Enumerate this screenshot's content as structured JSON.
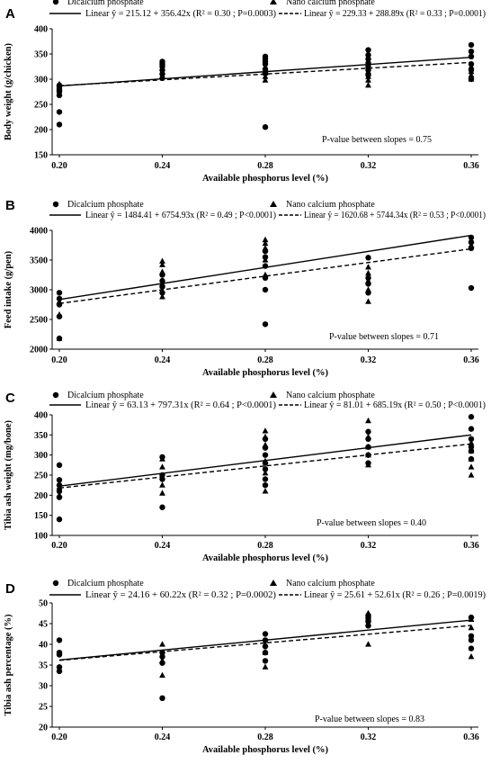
{
  "chart_data": [
    {
      "type": "scatter",
      "panel": "A",
      "xlabel": "Available phosphorus level (%)",
      "ylabel": "Body weight (g/chicken)",
      "xticks": [
        "0.20",
        "0.24",
        "0.28",
        "0.32",
        "0.36"
      ],
      "yticks": [
        "150",
        "200",
        "250",
        "300",
        "350",
        "400"
      ],
      "yticks_display": [
        "150",
        "200",
        "250",
        "300",
        "350",
        "400"
      ],
      "xlim": [
        0.2,
        0.36
      ],
      "ylim": [
        150,
        400
      ],
      "pvalue_text": "P-value between slopes = 0.75",
      "legend_pos": "top",
      "series": [
        {
          "name": "Dicalcium phosphate",
          "marker": "circle",
          "fit_label": "Linear ŷ = 215.12 + 356.42x (R² = 0.30 ; P=0.0003)",
          "fit_style": "solid",
          "intercept": 215.12,
          "slope": 356.42,
          "points": [
            [
              0.2,
              210
            ],
            [
              0.2,
              235
            ],
            [
              0.2,
              268
            ],
            [
              0.2,
              275
            ],
            [
              0.2,
              280
            ],
            [
              0.2,
              285
            ],
            [
              0.2,
              288
            ],
            [
              0.24,
              302
            ],
            [
              0.24,
              310
            ],
            [
              0.24,
              318
            ],
            [
              0.24,
              325
            ],
            [
              0.24,
              330
            ],
            [
              0.24,
              335
            ],
            [
              0.28,
              205
            ],
            [
              0.28,
              312
            ],
            [
              0.28,
              320
            ],
            [
              0.28,
              330
            ],
            [
              0.28,
              335
            ],
            [
              0.28,
              340
            ],
            [
              0.28,
              345
            ],
            [
              0.32,
              308
            ],
            [
              0.32,
              318
            ],
            [
              0.32,
              325
            ],
            [
              0.32,
              332
            ],
            [
              0.32,
              340
            ],
            [
              0.32,
              348
            ],
            [
              0.32,
              358
            ],
            [
              0.36,
              300
            ],
            [
              0.36,
              318
            ],
            [
              0.36,
              330
            ],
            [
              0.36,
              345
            ],
            [
              0.36,
              355
            ],
            [
              0.36,
              368
            ]
          ]
        },
        {
          "name": "Nano calcium phosphate",
          "marker": "triangle",
          "fit_label": "Linear ŷ = 229.33 + 288.89x (R² = 0.33 ; P=0.0001)",
          "fit_style": "dashed",
          "intercept": 229.33,
          "slope": 288.89,
          "points": [
            [
              0.2,
              272
            ],
            [
              0.2,
              282
            ],
            [
              0.2,
              290
            ],
            [
              0.24,
              305
            ],
            [
              0.24,
              315
            ],
            [
              0.24,
              322
            ],
            [
              0.28,
              298
            ],
            [
              0.28,
              305
            ],
            [
              0.28,
              312
            ],
            [
              0.28,
              322
            ],
            [
              0.32,
              288
            ],
            [
              0.32,
              298
            ],
            [
              0.32,
              305
            ],
            [
              0.32,
              315
            ],
            [
              0.32,
              322
            ],
            [
              0.36,
              300
            ],
            [
              0.36,
              308
            ],
            [
              0.36,
              315
            ],
            [
              0.36,
              325
            ]
          ]
        }
      ]
    },
    {
      "type": "scatter",
      "panel": "B",
      "xlabel": "Available phosphorus level (%)",
      "ylabel": "Feed intake (g/pen)",
      "xticks": [
        "0.20",
        "0.24",
        "0.28",
        "0.32",
        "0.36"
      ],
      "yticks": [
        "2000",
        "2500",
        "3000",
        "3500",
        "4000"
      ],
      "yticks_display": [
        "2000",
        "2500",
        "3000",
        "3500",
        "4000"
      ],
      "xlim": [
        0.2,
        0.36
      ],
      "ylim": [
        2000,
        4000
      ],
      "pvalue_text": "P-value between slopes = 0.71",
      "legend_pos": "top",
      "series": [
        {
          "name": "Dicalcium phosphate",
          "marker": "circle",
          "fit_label": "Linear ŷ = 1484.41 + 6754.93x  (R² = 0.49 ; P<0.0001)",
          "fit_style": "solid",
          "intercept": 1484.41,
          "slope": 6754.93,
          "points": [
            [
              0.2,
              2180
            ],
            [
              0.2,
              2550
            ],
            [
              0.2,
              2750
            ],
            [
              0.2,
              2850
            ],
            [
              0.2,
              2950
            ],
            [
              0.24,
              2950
            ],
            [
              0.24,
              3050
            ],
            [
              0.24,
              3150
            ],
            [
              0.24,
              3250
            ],
            [
              0.28,
              2420
            ],
            [
              0.28,
              3000
            ],
            [
              0.28,
              3200
            ],
            [
              0.28,
              3400
            ],
            [
              0.28,
              3550
            ],
            [
              0.28,
              3650
            ],
            [
              0.32,
              2950
            ],
            [
              0.32,
              3100
            ],
            [
              0.32,
              3200
            ],
            [
              0.32,
              3540
            ],
            [
              0.36,
              3030
            ],
            [
              0.36,
              3700
            ],
            [
              0.36,
              3800
            ],
            [
              0.36,
              3880
            ]
          ]
        },
        {
          "name": "Nano calcium phosphate",
          "marker": "triangle",
          "fit_label": "Linear ŷ = 1620.68 + 5744.34x  (R² = 0.53 ; P<0.0001)",
          "fit_style": "dashed",
          "intercept": 1620.68,
          "slope": 5744.34,
          "points": [
            [
              0.2,
              2180
            ],
            [
              0.2,
              2580
            ],
            [
              0.2,
              2800
            ],
            [
              0.24,
              2880
            ],
            [
              0.24,
              3100
            ],
            [
              0.24,
              3300
            ],
            [
              0.24,
              3420
            ],
            [
              0.24,
              3480
            ],
            [
              0.28,
              3250
            ],
            [
              0.28,
              3500
            ],
            [
              0.28,
              3700
            ],
            [
              0.28,
              3780
            ],
            [
              0.28,
              3840
            ],
            [
              0.32,
              2800
            ],
            [
              0.32,
              3000
            ],
            [
              0.32,
              3150
            ],
            [
              0.32,
              3280
            ],
            [
              0.32,
              3380
            ],
            [
              0.36,
              3750
            ],
            [
              0.36,
              3820
            ]
          ]
        }
      ]
    },
    {
      "type": "scatter",
      "panel": "C",
      "xlabel": "Available phosphorus level (%)",
      "ylabel": "Tibia ash weight (mg/bone)",
      "xticks": [
        "0.20",
        "0.24",
        "0.28",
        "0.32",
        "0.36"
      ],
      "yticks": [
        "100",
        "150",
        "200",
        "250",
        "300",
        "350",
        "400"
      ],
      "yticks_display": [
        "100",
        "150",
        "200",
        "250",
        "300",
        "350",
        "400"
      ],
      "xlim": [
        0.2,
        0.36
      ],
      "ylim": [
        100,
        400
      ],
      "pvalue_text": "P-value between slopes = 0.40",
      "legend_pos": "top",
      "series": [
        {
          "name": "Dicalcium phosphate",
          "marker": "circle",
          "fit_label": "Linear ŷ = 63.13 + 797.31x  (R² = 0.64 ; P<0.0001)",
          "fit_style": "solid",
          "intercept": 63.13,
          "slope": 797.31,
          "points": [
            [
              0.2,
              140
            ],
            [
              0.2,
              195
            ],
            [
              0.2,
              210
            ],
            [
              0.2,
              225
            ],
            [
              0.2,
              238
            ],
            [
              0.2,
              275
            ],
            [
              0.24,
              170
            ],
            [
              0.24,
              240
            ],
            [
              0.24,
              250
            ],
            [
              0.24,
              295
            ],
            [
              0.28,
              225
            ],
            [
              0.28,
              240
            ],
            [
              0.28,
              265
            ],
            [
              0.28,
              280
            ],
            [
              0.28,
              300
            ],
            [
              0.28,
              318
            ],
            [
              0.28,
              340
            ],
            [
              0.32,
              280
            ],
            [
              0.32,
              300
            ],
            [
              0.32,
              320
            ],
            [
              0.32,
              340
            ],
            [
              0.32,
              358
            ],
            [
              0.36,
              290
            ],
            [
              0.36,
              310
            ],
            [
              0.36,
              320
            ],
            [
              0.36,
              340
            ],
            [
              0.36,
              365
            ],
            [
              0.36,
              395
            ]
          ]
        },
        {
          "name": "Nano calcium phosphate",
          "marker": "triangle",
          "fit_label": "Linear ŷ = 81.01 + 685.19x  (R² = 0.50 ; P<0.0001)",
          "fit_style": "dashed",
          "intercept": 81.01,
          "slope": 685.19,
          "points": [
            [
              0.2,
              200
            ],
            [
              0.2,
              220
            ],
            [
              0.24,
              205
            ],
            [
              0.24,
              225
            ],
            [
              0.24,
              270
            ],
            [
              0.24,
              290
            ],
            [
              0.28,
              210
            ],
            [
              0.28,
              255
            ],
            [
              0.28,
              285
            ],
            [
              0.28,
              325
            ],
            [
              0.28,
              345
            ],
            [
              0.28,
              360
            ],
            [
              0.32,
              275
            ],
            [
              0.32,
              300
            ],
            [
              0.32,
              320
            ],
            [
              0.32,
              345
            ],
            [
              0.32,
              385
            ],
            [
              0.36,
              250
            ],
            [
              0.36,
              270
            ],
            [
              0.36,
              290
            ],
            [
              0.36,
              310
            ],
            [
              0.36,
              330
            ]
          ]
        }
      ]
    },
    {
      "type": "scatter",
      "panel": "D",
      "xlabel": "Available phosphorus level (%)",
      "ylabel": "Tibia ash percentage (%)",
      "xticks": [
        "0.20",
        "0.24",
        "0.28",
        "0.32",
        "0.36"
      ],
      "yticks": [
        "20",
        "25",
        "30",
        "35",
        "40",
        "45",
        "50"
      ],
      "yticks_display": [
        "20",
        "25",
        "30",
        "35",
        "40",
        "45",
        "50"
      ],
      "xlim": [
        0.2,
        0.36
      ],
      "ylim": [
        20,
        50
      ],
      "pvalue_text": "P-value between slopes = 0.83",
      "legend_pos": "top",
      "series": [
        {
          "name": "Dicalcium phosphate",
          "marker": "circle",
          "fit_label": "Linear ŷ = 24.16 + 60.22x (R² = 0.32 ; P=0.0002)",
          "fit_style": "solid",
          "intercept": 24.16,
          "slope": 60.22,
          "points": [
            [
              0.2,
              33.5
            ],
            [
              0.2,
              34.5
            ],
            [
              0.2,
              37.5
            ],
            [
              0.2,
              38.0
            ],
            [
              0.2,
              41.0
            ],
            [
              0.24,
              27.0
            ],
            [
              0.24,
              35.5
            ],
            [
              0.24,
              37.0
            ],
            [
              0.24,
              38.0
            ],
            [
              0.28,
              36.0
            ],
            [
              0.28,
              38.0
            ],
            [
              0.28,
              39.5
            ],
            [
              0.28,
              41.0
            ],
            [
              0.28,
              42.5
            ],
            [
              0.32,
              44.5
            ],
            [
              0.32,
              45.5
            ],
            [
              0.32,
              46.0
            ],
            [
              0.32,
              46.5
            ],
            [
              0.32,
              47.0
            ],
            [
              0.36,
              39.0
            ],
            [
              0.36,
              41.0
            ],
            [
              0.36,
              42.0
            ],
            [
              0.36,
              46.5
            ]
          ]
        },
        {
          "name": "Nano calcium phosphate",
          "marker": "triangle",
          "fit_label": "Linear ŷ = 25.61 + 52.61x (R² = 0.26 ; P=0.0019)",
          "fit_style": "dashed",
          "intercept": 25.61,
          "slope": 52.61,
          "points": [
            [
              0.2,
              34.0
            ],
            [
              0.24,
              32.5
            ],
            [
              0.24,
              36.0
            ],
            [
              0.24,
              40.0
            ],
            [
              0.28,
              34.5
            ],
            [
              0.28,
              38.0
            ],
            [
              0.28,
              40.0
            ],
            [
              0.32,
              40.0
            ],
            [
              0.32,
              45.0
            ],
            [
              0.32,
              46.0
            ],
            [
              0.32,
              47.5
            ],
            [
              0.36,
              37.0
            ],
            [
              0.36,
              44.0
            ],
            [
              0.36,
              46.0
            ]
          ]
        }
      ]
    }
  ]
}
